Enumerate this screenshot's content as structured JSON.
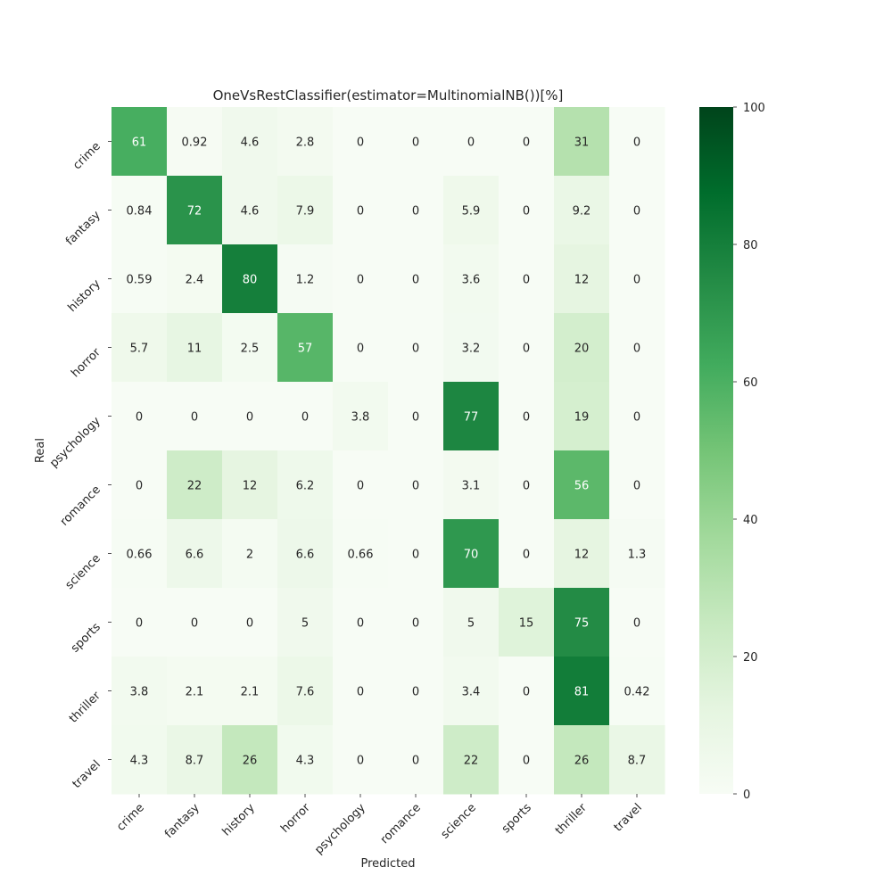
{
  "chart_data": {
    "type": "heatmap",
    "title": "OneVsRestClassifier(estimator=MultinomialNB())[%]",
    "xlabel": "Predicted",
    "ylabel": "Real",
    "x_categories": [
      "crime",
      "fantasy",
      "history",
      "horror",
      "psychology",
      "romance",
      "science",
      "sports",
      "thriller",
      "travel"
    ],
    "y_categories": [
      "crime",
      "fantasy",
      "history",
      "horror",
      "psychology",
      "romance",
      "science",
      "sports",
      "thriller",
      "travel"
    ],
    "values": [
      [
        61,
        0.92,
        4.6,
        2.8,
        0,
        0,
        0,
        0,
        31,
        0
      ],
      [
        0.84,
        72,
        4.6,
        7.9,
        0,
        0,
        5.9,
        0,
        9.2,
        0
      ],
      [
        0.59,
        2.4,
        80,
        1.2,
        0,
        0,
        3.6,
        0,
        12,
        0
      ],
      [
        5.7,
        11,
        2.5,
        57,
        0,
        0,
        3.2,
        0,
        20,
        0
      ],
      [
        0,
        0,
        0,
        0,
        3.8,
        0,
        77,
        0,
        19,
        0
      ],
      [
        0,
        22,
        12,
        6.2,
        0,
        0,
        3.1,
        0,
        56,
        0
      ],
      [
        0.66,
        6.6,
        2,
        6.6,
        0.66,
        0,
        70,
        0,
        12,
        1.3
      ],
      [
        0,
        0,
        0,
        5,
        0,
        0,
        5,
        15,
        75,
        0
      ],
      [
        3.8,
        2.1,
        2.1,
        7.6,
        0,
        0,
        3.4,
        0,
        81,
        0.42
      ],
      [
        4.3,
        8.7,
        26,
        4.3,
        0,
        0,
        22,
        0,
        26,
        8.7
      ]
    ],
    "value_range": [
      0,
      100
    ],
    "colormap": "Greens",
    "colorbar_ticks": [
      0,
      20,
      40,
      60,
      80,
      100
    ],
    "grid": false
  }
}
